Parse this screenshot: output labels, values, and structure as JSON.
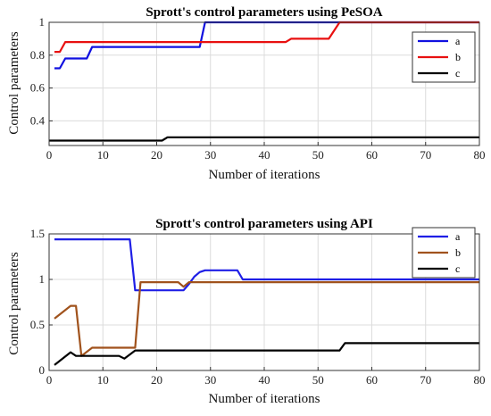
{
  "chart_data": [
    {
      "type": "line",
      "title": "Sprott's control parameters using PeSOA",
      "xlabel": "Number of iterations",
      "ylabel": "Control parameters",
      "xlim": [
        0,
        80
      ],
      "ylim": [
        0.25,
        1
      ],
      "xticks": [
        0,
        10,
        20,
        30,
        40,
        50,
        60,
        70,
        80
      ],
      "yticks": [
        0.4,
        0.6,
        0.8,
        1
      ],
      "ytick_labels": [
        "0.4",
        "0.6",
        "0.8",
        "1"
      ],
      "grid": true,
      "legend": "top-right",
      "series": [
        {
          "name": "a",
          "color": "#1010e0",
          "x": [
            1,
            2,
            3,
            7,
            8,
            28,
            29,
            80
          ],
          "y": [
            0.72,
            0.72,
            0.78,
            0.78,
            0.85,
            0.85,
            1.0,
            1.0
          ]
        },
        {
          "name": "b",
          "color": "#e81010",
          "x": [
            1,
            2,
            3,
            44,
            45,
            52,
            54,
            80
          ],
          "y": [
            0.82,
            0.82,
            0.88,
            0.88,
            0.9,
            0.9,
            1.0,
            1.0
          ]
        },
        {
          "name": "c",
          "color": "#000000",
          "x": [
            0,
            21,
            22,
            80
          ],
          "y": [
            0.28,
            0.28,
            0.3,
            0.3
          ]
        }
      ]
    },
    {
      "type": "line",
      "title": "Sprott's control parameters using API",
      "xlabel": "Number of iterations",
      "ylabel": "Control parameters",
      "xlim": [
        0,
        80
      ],
      "ylim": [
        0,
        1.5
      ],
      "xticks": [
        0,
        10,
        20,
        30,
        40,
        50,
        60,
        70,
        80
      ],
      "yticks": [
        0,
        0.5,
        1,
        1.5
      ],
      "ytick_labels": [
        "0",
        "0.5",
        "1",
        "1.5"
      ],
      "grid": true,
      "legend": "top-right",
      "series": [
        {
          "name": "a",
          "color": "#1f1fe6",
          "x": [
            1,
            15,
            16,
            25,
            26,
            27,
            28,
            29,
            35,
            36,
            80
          ],
          "y": [
            1.44,
            1.44,
            0.88,
            0.88,
            0.95,
            1.03,
            1.08,
            1.1,
            1.1,
            1.0,
            1.0
          ]
        },
        {
          "name": "b",
          "color": "#a0521c",
          "x": [
            1,
            4,
            5,
            6,
            8,
            9,
            15,
            16,
            17,
            24,
            25,
            26,
            80
          ],
          "y": [
            0.57,
            0.71,
            0.71,
            0.16,
            0.25,
            0.25,
            0.25,
            0.25,
            0.97,
            0.97,
            0.92,
            0.97,
            0.97
          ]
        },
        {
          "name": "c",
          "color": "#000000",
          "x": [
            1,
            4,
            5,
            6,
            13,
            14,
            16,
            54,
            55,
            80
          ],
          "y": [
            0.06,
            0.2,
            0.16,
            0.16,
            0.16,
            0.13,
            0.22,
            0.22,
            0.3,
            0.3
          ]
        }
      ]
    }
  ]
}
